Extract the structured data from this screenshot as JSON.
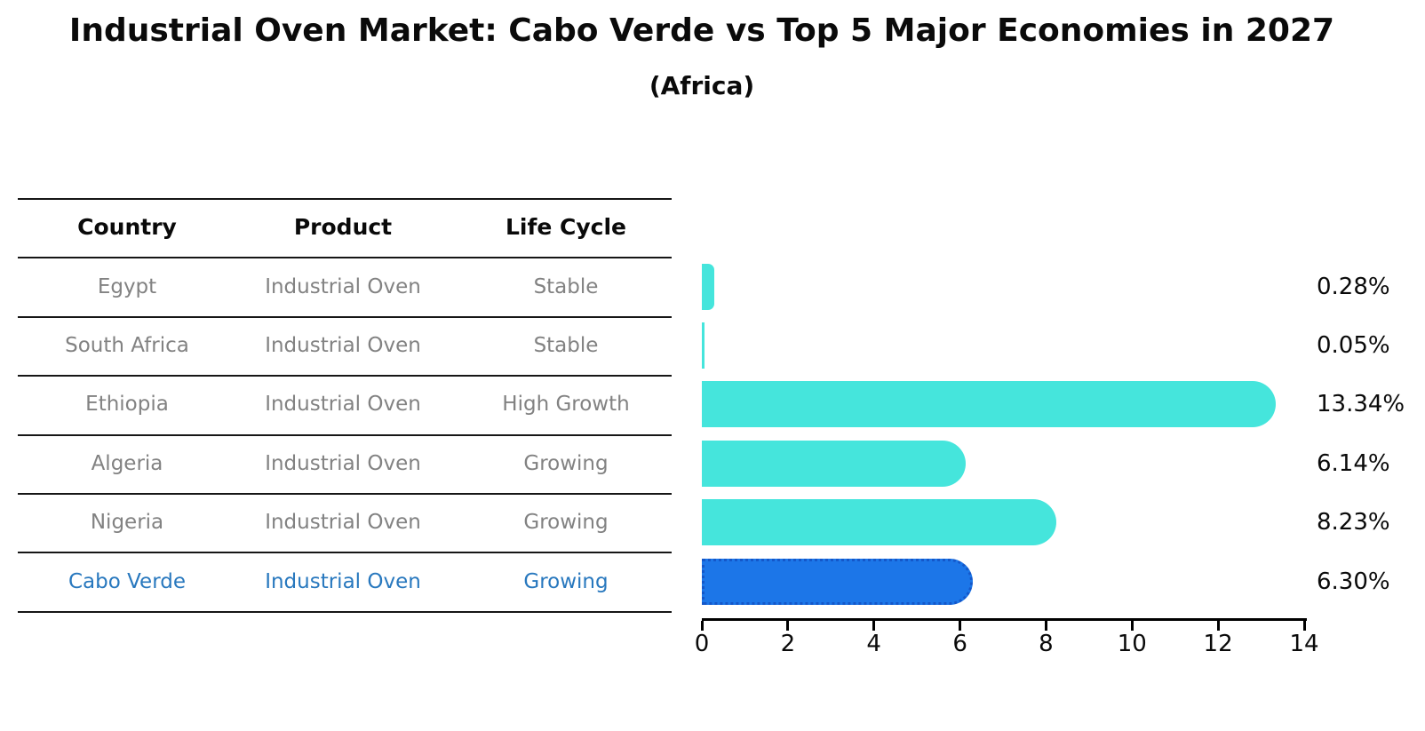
{
  "title": "Industrial Oven Market: Cabo Verde vs Top 5 Major Economies in 2027",
  "subtitle": "(Africa)",
  "table": {
    "headers": {
      "country": "Country",
      "product": "Product",
      "life_cycle": "Life Cycle"
    },
    "rows": [
      {
        "country": "Egypt",
        "product": "Industrial Oven",
        "life_cycle": "Stable"
      },
      {
        "country": "South Africa",
        "product": "Industrial Oven",
        "life_cycle": "Stable"
      },
      {
        "country": "Ethiopia",
        "product": "Industrial Oven",
        "life_cycle": "High Growth"
      },
      {
        "country": "Algeria",
        "product": "Industrial Oven",
        "life_cycle": "Growing"
      },
      {
        "country": "Nigeria",
        "product": "Industrial Oven",
        "life_cycle": "Growing"
      },
      {
        "country": "Cabo Verde",
        "product": "Industrial Oven",
        "life_cycle": "Growing"
      }
    ],
    "highlight_row": "Cabo Verde"
  },
  "chart_data": {
    "type": "bar",
    "orientation": "horizontal",
    "categories": [
      "Egypt",
      "South Africa",
      "Ethiopia",
      "Algeria",
      "Nigeria",
      "Cabo Verde"
    ],
    "values": [
      0.28,
      0.05,
      13.34,
      6.14,
      8.23,
      6.3
    ],
    "value_labels": [
      "0.28%",
      "0.05%",
      "13.34%",
      "6.14%",
      "8.23%",
      "6.30%"
    ],
    "title": "Industrial Oven Market: Cabo Verde vs Top 5 Major Economies in 2027",
    "subtitle": "(Africa)",
    "xlabel": "",
    "ylabel": "",
    "xlim": [
      0,
      14
    ],
    "xticks": [
      0,
      2,
      4,
      6,
      8,
      10,
      12,
      14
    ],
    "grid": false,
    "legend": false,
    "bar_color": "#45e5dc",
    "highlight_bar_color": "#1c76e8",
    "highlight_border_color": "#1457c9",
    "highlight_index": 5
  },
  "colors": {
    "background": "#ffffff",
    "table_text_muted": "#828282",
    "highlight_text": "#2878be",
    "rule_line": "#161616",
    "axis": "#000000"
  }
}
